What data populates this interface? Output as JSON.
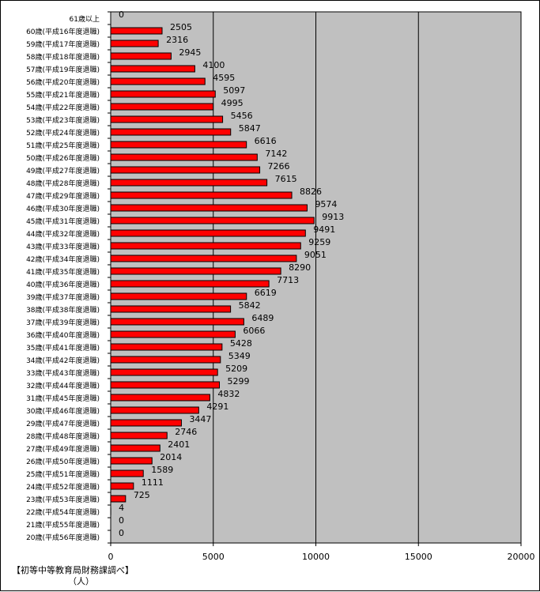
{
  "chart_data": {
    "type": "bar",
    "orientation": "horizontal",
    "title": "",
    "xlabel": "（人）",
    "ylabel": "",
    "xlim": [
      0,
      20000
    ],
    "x_ticks": [
      0,
      5000,
      10000,
      15000,
      20000
    ],
    "grid": "vertical",
    "bar_color": "#ff0000",
    "plot_bg": "#c0c0c0",
    "categories": [
      "61歳以上",
      "60歳(平成16年度退職)",
      "59歳(平成17年度退職)",
      "58歳(平成18年度退職)",
      "57歳(平成19年度退職)",
      "56歳(平成20年度退職)",
      "55歳(平成21年度退職)",
      "54歳(平成22年度退職)",
      "53歳(平成23年度退職)",
      "52歳(平成24年度退職)",
      "51歳(平成25年度退職)",
      "50歳(平成26年度退職)",
      "49歳(平成27年度退職)",
      "48歳(平成28年度退職)",
      "47歳(平成29年度退職)",
      "46歳(平成30年度退職)",
      "45歳(平成31年度退職)",
      "44歳(平成32年度退職)",
      "43歳(平成33年度退職)",
      "42歳(平成34年度退職)",
      "41歳(平成35年度退職)",
      "40歳(平成36年度退職)",
      "39歳(平成37年度退職)",
      "38歳(平成38年度退職)",
      "37歳(平成39年度退職)",
      "36歳(平成40年度退職)",
      "35歳(平成41年度退職)",
      "34歳(平成42年度退職)",
      "33歳(平成43年度退職)",
      "32歳(平成44年度退職)",
      "31歳(平成45年度退職)",
      "30歳(平成46年度退職)",
      "29歳(平成47年度退職)",
      "28歳(平成48年度退職)",
      "27歳(平成49年度退職)",
      "26歳(平成50年度退職)",
      "25歳(平成51年度退職)",
      "24歳(平成52年度退職)",
      "23歳(平成53年度退職)",
      "22歳(平成54年度退職)",
      "21歳(平成55年度退職)",
      "20歳(平成56年度退職)"
    ],
    "values": [
      0,
      2505,
      2316,
      2945,
      4100,
      4595,
      5097,
      4995,
      5456,
      5847,
      6616,
      7142,
      7266,
      7615,
      8826,
      9574,
      9913,
      9491,
      9259,
      9051,
      8290,
      7713,
      6619,
      5842,
      6489,
      6066,
      5428,
      5349,
      5209,
      5299,
      4832,
      4291,
      3447,
      2746,
      2401,
      2014,
      1589,
      1111,
      725,
      4,
      0,
      0
    ]
  },
  "source_note": "【初等中等教育局財務課調べ】",
  "unit_label": "（人）"
}
